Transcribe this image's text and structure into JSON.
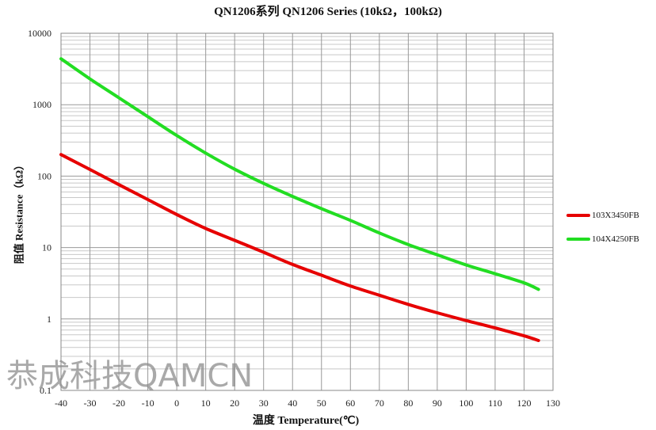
{
  "chart_data": {
    "type": "line",
    "title": "QN1206系列  QN1206 Series (10kΩ，100kΩ)",
    "xlabel": "温度 Temperature(℃)",
    "ylabel": "阻值 Resistance（kΩ）",
    "xlim": [
      -40,
      130
    ],
    "ylim": [
      0.1,
      10000
    ],
    "yscale": "log",
    "grid": true,
    "legend_position": "right",
    "x_ticks": [
      "-40",
      "-30",
      "-20",
      "-10",
      "0",
      "10",
      "20",
      "30",
      "40",
      "50",
      "60",
      "70",
      "80",
      "90",
      "100",
      "110",
      "120",
      "130"
    ],
    "y_ticks": [
      "0.1",
      "1",
      "10",
      "100",
      "1000",
      "10000"
    ],
    "x": [
      -40,
      -30,
      -20,
      -10,
      0,
      10,
      20,
      30,
      40,
      50,
      60,
      70,
      80,
      90,
      100,
      110,
      120,
      125
    ],
    "series": [
      {
        "name": "103X3450FB",
        "color": "#e60000",
        "values": [
          200,
          124,
          76,
          47,
          29,
          18.5,
          12.6,
          8.6,
          5.8,
          4.1,
          2.9,
          2.15,
          1.6,
          1.22,
          0.95,
          0.75,
          0.58,
          0.5
        ]
      },
      {
        "name": "104X4250FB",
        "color": "#22dd22",
        "values": [
          4400,
          2300,
          1250,
          680,
          370,
          210,
          125,
          79,
          52,
          35,
          24,
          16,
          11,
          7.9,
          5.7,
          4.3,
          3.2,
          2.6
        ]
      }
    ]
  },
  "watermark": "恭成科技QAMCN"
}
